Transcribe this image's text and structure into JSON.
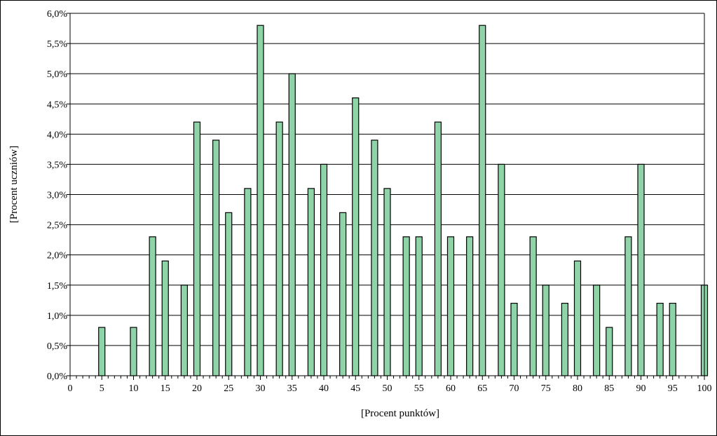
{
  "chart_data": {
    "type": "bar",
    "xlabel": "[Procent punktów]",
    "ylabel": "[Procent uczniów]",
    "ylim": [
      0,
      6
    ],
    "xlim": [
      0,
      100
    ],
    "y_ticks": [
      "0,0%",
      "0,5%",
      "1,0%",
      "1,5%",
      "2,0%",
      "2,5%",
      "3,0%",
      "3,5%",
      "4,0%",
      "4,5%",
      "5,0%",
      "5,5%",
      "6,0%"
    ],
    "x_ticks": [
      "0",
      "5",
      "10",
      "15",
      "20",
      "25",
      "30",
      "35",
      "40",
      "45",
      "50",
      "55",
      "60",
      "65",
      "70",
      "75",
      "80",
      "85",
      "90",
      "95",
      "100"
    ],
    "grid": "horizontal",
    "legend": "none",
    "bar_color": "#8fd4a8",
    "bar_edge_color": "#000000",
    "x": [
      5,
      10,
      13,
      15,
      18,
      20,
      23,
      25,
      28,
      30,
      33,
      35,
      38,
      40,
      43,
      45,
      48,
      50,
      53,
      55,
      58,
      60,
      63,
      65,
      68,
      70,
      73,
      75,
      78,
      80,
      83,
      85,
      88,
      90,
      93,
      95,
      100
    ],
    "values": [
      0.8,
      0.8,
      2.3,
      1.9,
      1.5,
      4.2,
      3.9,
      2.7,
      3.1,
      5.8,
      4.2,
      5.0,
      3.1,
      3.5,
      2.7,
      4.6,
      3.9,
      3.1,
      2.3,
      2.3,
      4.2,
      2.3,
      2.3,
      5.8,
      3.5,
      1.2,
      2.3,
      1.5,
      1.2,
      1.9,
      1.5,
      0.8,
      2.3,
      3.5,
      1.2,
      1.2,
      1.5
    ]
  }
}
